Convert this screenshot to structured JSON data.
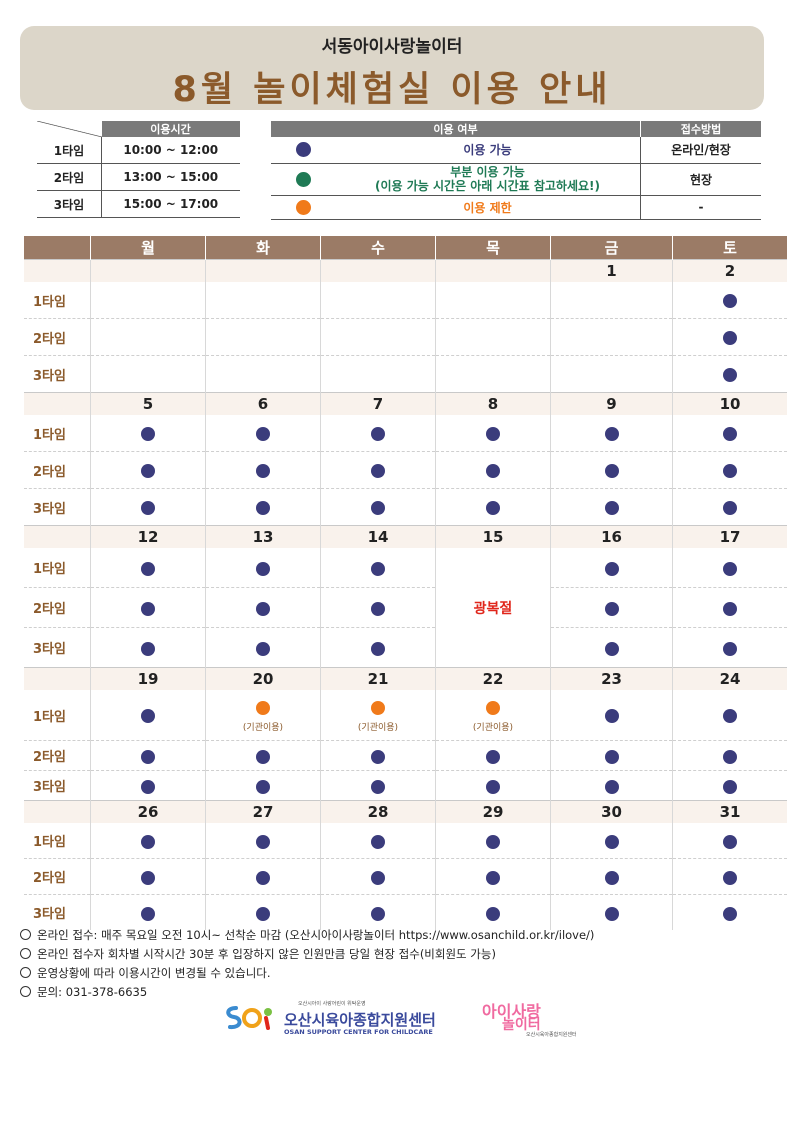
{
  "header": {
    "subtitle": "서동아이사랑놀이터",
    "title": "8월 놀이체험실 이용 안내"
  },
  "time_table": {
    "header": "이용시간",
    "rows": [
      {
        "label": "1타임",
        "time": "10:00 ~ 12:00"
      },
      {
        "label": "2타임",
        "time": "13:00 ~ 15:00"
      },
      {
        "label": "3타임",
        "time": "15:00 ~ 17:00"
      }
    ]
  },
  "legend": {
    "header_status": "이용 여부",
    "header_method": "접수방법",
    "rows": [
      {
        "color": "#3b3c7c",
        "desc": "이용 가능",
        "desc_color": "#3b3c7c",
        "method": "온라인/현장"
      },
      {
        "color": "#1f7a55",
        "desc": "부분 이용 가능",
        "desc2": "(이용 가능 시간은 아래 시간표 참고하세요!)",
        "desc_color": "#1f7a55",
        "method": "현장"
      },
      {
        "color": "#f07a1a",
        "desc": "이용 제한",
        "desc_color": "#f07a1a",
        "method": "-"
      }
    ]
  },
  "colors": {
    "available": "#3b3c7c",
    "restricted": "#f07a1a",
    "holiday": "#e0261b"
  },
  "calendar": {
    "days": [
      "월",
      "화",
      "수",
      "목",
      "금",
      "토"
    ],
    "slot_labels": [
      "1타임",
      "2타임",
      "3타임"
    ],
    "holiday_label": "광복절",
    "institution_note": "(기관이용)",
    "weeks": [
      {
        "dates": [
          "",
          "",
          "",
          "",
          "1",
          "2"
        ],
        "slots": [
          [
            "",
            "",
            "",
            "",
            "",
            "a"
          ],
          [
            "",
            "",
            "",
            "",
            "",
            "a"
          ],
          [
            "",
            "",
            "",
            "",
            "",
            "a"
          ]
        ]
      },
      {
        "dates": [
          "5",
          "6",
          "7",
          "8",
          "9",
          "10"
        ],
        "slots": [
          [
            "a",
            "a",
            "a",
            "a",
            "a",
            "a"
          ],
          [
            "a",
            "a",
            "a",
            "a",
            "a",
            "a"
          ],
          [
            "a",
            "a",
            "a",
            "a",
            "a",
            "a"
          ]
        ]
      },
      {
        "dates": [
          "12",
          "13",
          "14",
          "15",
          "16",
          "17"
        ],
        "slots": [
          [
            "a",
            "a",
            "a",
            "h",
            "a",
            "a"
          ],
          [
            "a",
            "a",
            "a",
            "h",
            "a",
            "a"
          ],
          [
            "a",
            "a",
            "a",
            "h",
            "a",
            "a"
          ]
        ]
      },
      {
        "dates": [
          "19",
          "20",
          "21",
          "22",
          "23",
          "24"
        ],
        "slots": [
          [
            "a",
            "r",
            "r",
            "r",
            "a",
            "a"
          ],
          [
            "a",
            "a",
            "a",
            "a",
            "a",
            "a"
          ],
          [
            "a",
            "a",
            "a",
            "a",
            "a",
            "a"
          ]
        ]
      },
      {
        "dates": [
          "26",
          "27",
          "28",
          "29",
          "30",
          "31"
        ],
        "slots": [
          [
            "a",
            "a",
            "a",
            "a",
            "a",
            "a"
          ],
          [
            "a",
            "a",
            "a",
            "a",
            "a",
            "a"
          ],
          [
            "a",
            "a",
            "a",
            "a",
            "a",
            "a"
          ]
        ]
      }
    ]
  },
  "notes": [
    "온라인 접수: 매주 목요일 오전 10시~ 선착순 마감 (오산시아이사랑놀이터 https://www.osanchild.or.kr/ilove/)",
    "온라인 접수자 회차별 시작시간 30분 후 입장하지 않은 인원만큼 당일 현장 접수(비회원도 가능)",
    "운영상황에 따라 이용시간이 변경될 수 있습니다.",
    "문의: 031-378-6635"
  ],
  "logos": {
    "org_tiny": "오산시아이 사랑어린이 위탁운영",
    "org_name": "오산시육아종합지원센터",
    "org_eng": "OSAN SUPPORT CENTER FOR CHILDCARE",
    "brand_line1": "아이사랑",
    "brand_line2": "놀이터",
    "brand_tiny": "오산시육아종합지원센터"
  }
}
